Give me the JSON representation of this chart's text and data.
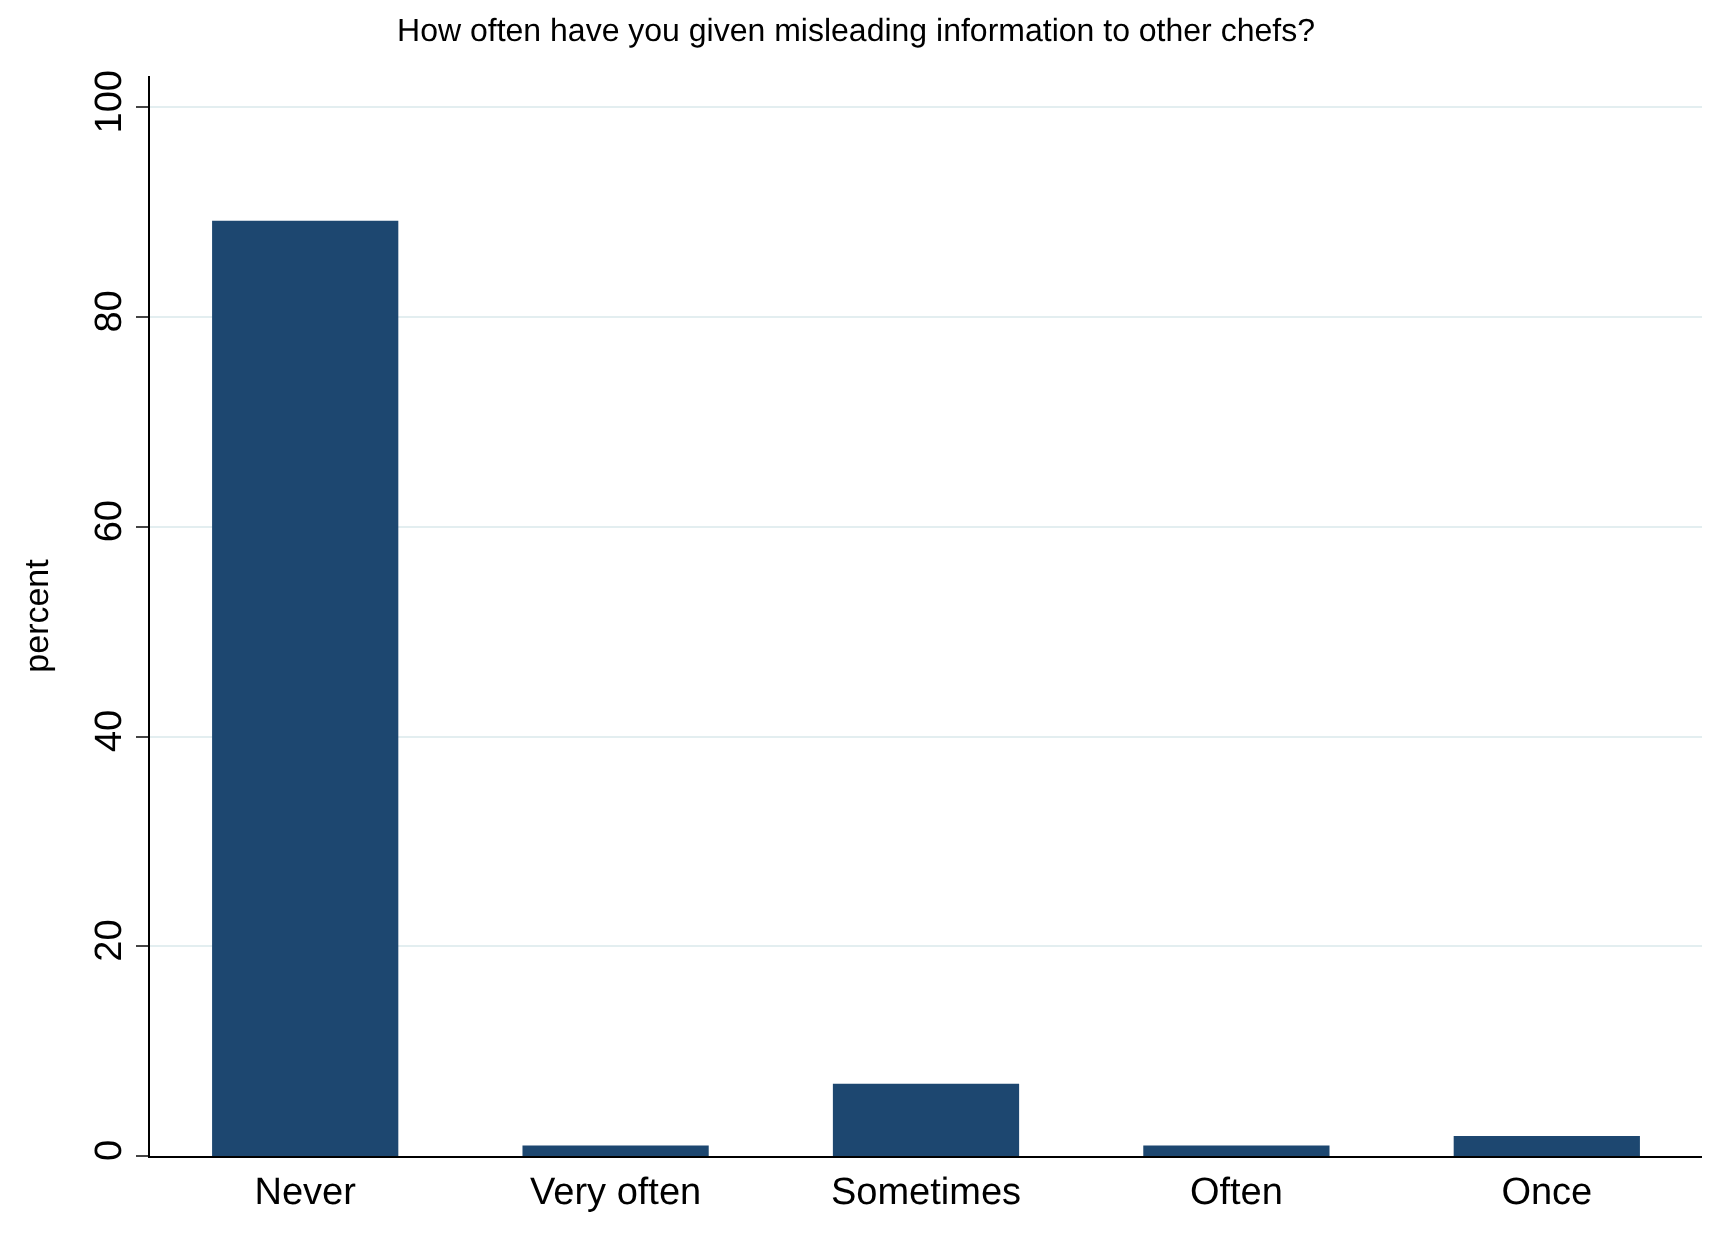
{
  "chart_data": {
    "type": "bar",
    "title": "How often have you given misleading information to other chefs?",
    "ylabel": "percent",
    "categories": [
      "Never",
      "Very often",
      "Sometimes",
      "Often",
      "Once"
    ],
    "values": [
      89.2,
      1.0,
      6.9,
      1.0,
      1.9
    ],
    "color": "#1d4770",
    "ylim": [
      0,
      103
    ],
    "yticks": [
      0,
      20,
      40,
      60,
      80,
      100
    ],
    "grid": "y"
  }
}
